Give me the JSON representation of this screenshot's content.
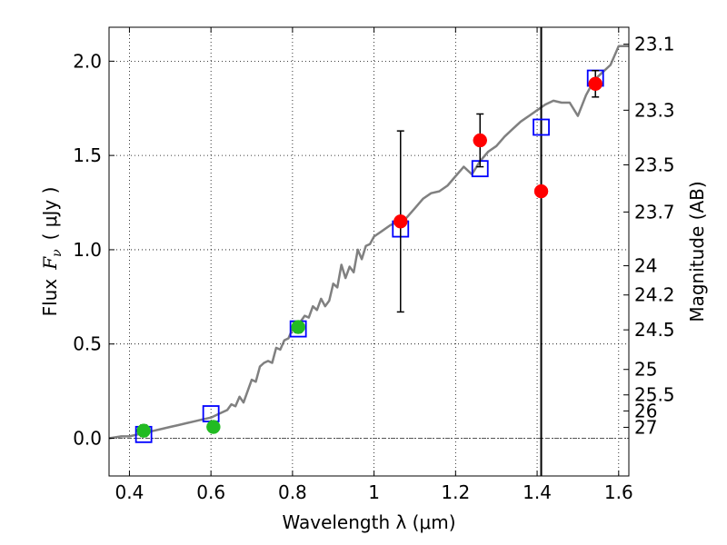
{
  "chart_data": {
    "type": "scatter",
    "xlabel": "Wavelength  λ (μm)",
    "ylabel": "Flux  F_ν  ( μJy )",
    "ylabel_parts": {
      "flux": "Flux",
      "symbol": "F",
      "sub": "ν",
      "unit": "( μJy )"
    },
    "y2label": "Magnitude (AB)",
    "xlim": [
      0.35,
      1.625
    ],
    "ylim": [
      -0.2,
      2.18
    ],
    "grid": true,
    "x_ticks": [
      0.4,
      0.6,
      0.8,
      1.0,
      1.2,
      1.4,
      1.6
    ],
    "x_tick_labels": [
      "0.4",
      "0.6",
      "0.8",
      "1",
      "1.2",
      "1.4",
      "1.6"
    ],
    "y_ticks": [
      0.0,
      0.5,
      1.0,
      1.5,
      2.0
    ],
    "y_tick_labels": [
      "0.0",
      "0.5",
      "1.0",
      "1.5",
      "2.0"
    ],
    "mag_ticks": [
      {
        "label": "23.1",
        "y": 2.09
      },
      {
        "label": "23.3",
        "y": 1.74
      },
      {
        "label": "23.5",
        "y": 1.45
      },
      {
        "label": "23.7",
        "y": 1.2
      },
      {
        "label": "24",
        "y": 0.915
      },
      {
        "label": "24.2",
        "y": 0.76
      },
      {
        "label": "24.5",
        "y": 0.575
      },
      {
        "label": "25",
        "y": 0.365
      },
      {
        "label": "25.5",
        "y": 0.23
      },
      {
        "label": "26",
        "y": 0.145
      },
      {
        "label": "27",
        "y": 0.058
      }
    ],
    "vertical_line_x": 1.41,
    "horizontal_ref_y": 0.0,
    "colors": {
      "model": "#808080",
      "model_squares": "#0000ff",
      "optical": "#22bb22",
      "nir": "#ff0000",
      "errorbar": "#000000"
    },
    "series": [
      {
        "kind": "line",
        "x": [
          0.35,
          0.38,
          0.4,
          0.42,
          0.44,
          0.46,
          0.48,
          0.5,
          0.52,
          0.54,
          0.56,
          0.58,
          0.6,
          0.62,
          0.64,
          0.65,
          0.66,
          0.67,
          0.68,
          0.69,
          0.7,
          0.71,
          0.72,
          0.73,
          0.74,
          0.75,
          0.76,
          0.77,
          0.78,
          0.79,
          0.8,
          0.81,
          0.82,
          0.83,
          0.84,
          0.85,
          0.86,
          0.87,
          0.88,
          0.89,
          0.9,
          0.91,
          0.92,
          0.93,
          0.94,
          0.95,
          0.96,
          0.97,
          0.98,
          0.99,
          1.0,
          1.02,
          1.04,
          1.06,
          1.08,
          1.1,
          1.12,
          1.14,
          1.16,
          1.18,
          1.2,
          1.22,
          1.24,
          1.26,
          1.28,
          1.3,
          1.32,
          1.34,
          1.36,
          1.38,
          1.4,
          1.42,
          1.44,
          1.46,
          1.48,
          1.5,
          1.52,
          1.54,
          1.56,
          1.58,
          1.6,
          1.625
        ],
        "y": [
          0.0,
          0.01,
          0.01,
          0.02,
          0.03,
          0.04,
          0.05,
          0.06,
          0.07,
          0.08,
          0.09,
          0.1,
          0.11,
          0.13,
          0.15,
          0.18,
          0.17,
          0.22,
          0.19,
          0.25,
          0.31,
          0.3,
          0.38,
          0.4,
          0.41,
          0.4,
          0.48,
          0.47,
          0.52,
          0.53,
          0.58,
          0.57,
          0.62,
          0.65,
          0.64,
          0.7,
          0.68,
          0.74,
          0.7,
          0.73,
          0.82,
          0.8,
          0.92,
          0.85,
          0.91,
          0.88,
          1.0,
          0.95,
          1.02,
          1.03,
          1.07,
          1.1,
          1.13,
          1.15,
          1.17,
          1.22,
          1.27,
          1.3,
          1.31,
          1.34,
          1.39,
          1.44,
          1.4,
          1.47,
          1.52,
          1.55,
          1.6,
          1.64,
          1.68,
          1.71,
          1.74,
          1.77,
          1.79,
          1.78,
          1.78,
          1.71,
          1.82,
          1.9,
          1.94,
          1.98,
          2.08,
          2.08
        ]
      },
      {
        "kind": "squares",
        "x": [
          0.435,
          0.6,
          0.814,
          1.065,
          1.26,
          1.41,
          1.543
        ],
        "y": [
          0.02,
          0.13,
          0.58,
          1.11,
          1.43,
          1.65,
          1.91
        ]
      },
      {
        "kind": "points",
        "x": [
          0.435,
          0.606,
          0.814
        ],
        "y": [
          0.04,
          0.06,
          0.59
        ],
        "yerr": [
          0.03,
          0.0,
          0.03
        ]
      },
      {
        "kind": "points",
        "x": [
          1.065,
          1.26,
          1.41,
          1.543
        ],
        "y": [
          1.15,
          1.58,
          1.31,
          1.88
        ],
        "yerr": [
          0.48,
          0.14,
          0.0,
          0.07
        ]
      }
    ]
  }
}
